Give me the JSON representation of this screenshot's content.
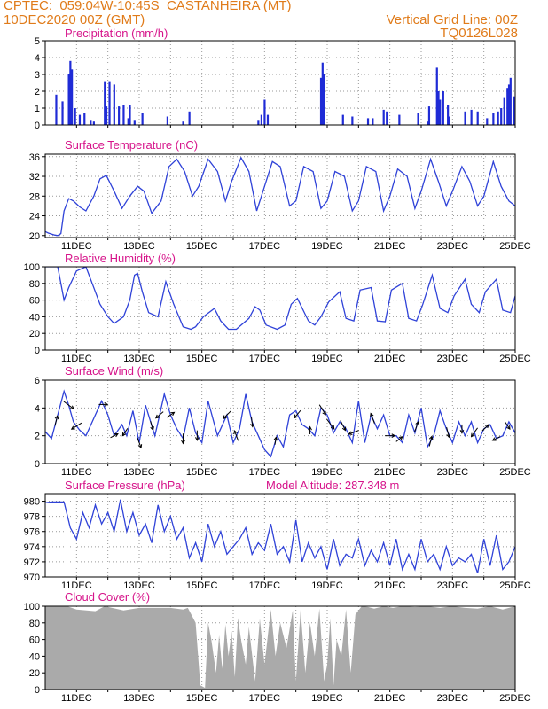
{
  "header": {
    "line1_left": "CPTEC:  059:04W-10:45S  CASTANHEIRA (MT)",
    "line2_left": "10DEC2020 00Z (GMT)",
    "line1_right": "Vertical Grid Line: 00Z",
    "line2_right": "TQ0126L028"
  },
  "x_axis": {
    "range_days": [
      10,
      25
    ],
    "tick_labels": [
      "11DEC",
      "13DEC",
      "15DEC",
      "17DEC",
      "19DEC",
      "21DEC",
      "23DEC",
      "25DEC"
    ],
    "tick_days": [
      11,
      13,
      15,
      17,
      19,
      21,
      23,
      25
    ]
  },
  "colors": {
    "line": "#2f42d8",
    "bar": "#1f2bd6",
    "cloud": "#aaaaaa",
    "title": "#d6138a",
    "header": "#e07b1a",
    "arrow": "#000000"
  },
  "chart_data": [
    {
      "type": "bar",
      "title": "Precipitation (mm/h)",
      "ylim": [
        0,
        5
      ],
      "yticks": [
        0,
        1,
        2,
        3,
        4,
        5
      ],
      "x": [
        10.35,
        10.55,
        10.75,
        10.8,
        10.85,
        10.95,
        11.1,
        11.25,
        11.45,
        11.55,
        11.9,
        11.95,
        12.05,
        12.2,
        12.35,
        12.5,
        12.65,
        12.7,
        12.85,
        13.1,
        13.9,
        14.4,
        14.6,
        16.8,
        16.9,
        17.0,
        17.1,
        18.8,
        18.85,
        18.9,
        19.5,
        19.8,
        20.3,
        20.45,
        20.8,
        20.9,
        21.3,
        21.9,
        22.2,
        22.25,
        22.5,
        22.55,
        22.6,
        22.7,
        22.85,
        22.9,
        23.4,
        23.6,
        23.8,
        24.1,
        24.3,
        24.45,
        24.55,
        24.65,
        24.75,
        24.8,
        24.85,
        24.95
      ],
      "values": [
        1.8,
        1.4,
        3.0,
        3.8,
        3.3,
        1.0,
        0.6,
        0.7,
        0.3,
        0.2,
        2.6,
        1.1,
        2.6,
        2.4,
        1.1,
        1.2,
        0.4,
        1.2,
        0.3,
        0.7,
        0.5,
        0.2,
        0.8,
        0.3,
        0.6,
        1.5,
        0.6,
        2.8,
        3.7,
        3.0,
        0.6,
        0.5,
        0.4,
        0.4,
        0.9,
        0.8,
        0.6,
        0.7,
        0.2,
        1.1,
        3.4,
        2.0,
        1.5,
        2.0,
        1.2,
        0.5,
        0.8,
        0.9,
        0.8,
        0.4,
        0.7,
        0.8,
        1.0,
        1.6,
        2.2,
        2.4,
        2.8,
        1.7
      ]
    },
    {
      "type": "line",
      "title": "Surface Temperature (nC)",
      "ylim": [
        19.6,
        36.5
      ],
      "yticks": [
        20,
        24,
        28,
        32,
        36
      ],
      "x": [
        10.0,
        10.1,
        10.2,
        10.3,
        10.4,
        10.5,
        10.6,
        10.75,
        10.9,
        11.1,
        11.3,
        11.55,
        11.75,
        11.95,
        12.2,
        12.45,
        12.7,
        12.95,
        13.15,
        13.4,
        13.7,
        13.95,
        14.2,
        14.45,
        14.7,
        14.9,
        15.2,
        15.5,
        15.75,
        15.95,
        16.25,
        16.5,
        16.75,
        16.95,
        17.25,
        17.5,
        17.8,
        18.0,
        18.25,
        18.55,
        18.8,
        19.0,
        19.25,
        19.55,
        19.8,
        20.0,
        20.25,
        20.55,
        20.8,
        21.0,
        21.25,
        21.55,
        21.8,
        22.0,
        22.3,
        22.55,
        22.8,
        23.0,
        23.3,
        23.55,
        23.8,
        24.0,
        24.3,
        24.55,
        24.8,
        25.0
      ],
      "values": [
        20.8,
        20.5,
        20.3,
        20.1,
        20.0,
        20.4,
        25.0,
        27.5,
        27.0,
        25.8,
        25.0,
        28.0,
        31.5,
        32.2,
        29.0,
        25.5,
        28.0,
        30.0,
        29.0,
        24.5,
        27.0,
        34.0,
        35.5,
        33.0,
        28.0,
        30.0,
        35.5,
        33.0,
        27.0,
        31.0,
        35.8,
        33.0,
        25.0,
        29.0,
        35.0,
        34.0,
        26.0,
        27.0,
        34.0,
        33.0,
        25.5,
        27.0,
        33.0,
        32.0,
        25.0,
        27.0,
        34.0,
        33.0,
        25.0,
        28.0,
        33.5,
        32.0,
        25.5,
        29.0,
        35.5,
        31.0,
        26.0,
        29.0,
        34.0,
        31.0,
        26.0,
        28.0,
        35.0,
        30.0,
        27.0,
        26.0
      ]
    },
    {
      "type": "line",
      "title": "Relative Humidity (%)",
      "ylim": [
        0,
        100
      ],
      "yticks": [
        0,
        20,
        40,
        60,
        80,
        100
      ],
      "x": [
        10.0,
        10.4,
        10.6,
        10.75,
        11.0,
        11.3,
        11.5,
        11.75,
        12.0,
        12.2,
        12.5,
        12.7,
        12.85,
        12.95,
        13.1,
        13.3,
        13.6,
        13.85,
        14.1,
        14.4,
        14.65,
        14.8,
        15.05,
        15.4,
        15.6,
        15.85,
        16.1,
        16.5,
        16.7,
        16.85,
        17.05,
        17.4,
        17.65,
        17.85,
        18.05,
        18.4,
        18.6,
        18.8,
        19.05,
        19.4,
        19.6,
        19.85,
        20.05,
        20.4,
        20.6,
        20.85,
        21.05,
        21.4,
        21.6,
        21.85,
        22.05,
        22.35,
        22.6,
        22.85,
        23.05,
        23.4,
        23.6,
        23.85,
        24.05,
        24.4,
        24.6,
        24.85,
        25.0
      ],
      "values": [
        100,
        100,
        60,
        75,
        95,
        100,
        80,
        55,
        40,
        32,
        40,
        60,
        90,
        92,
        70,
        45,
        40,
        82,
        55,
        28,
        25,
        28,
        40,
        50,
        35,
        25,
        25,
        38,
        52,
        48,
        30,
        25,
        30,
        55,
        62,
        35,
        30,
        40,
        58,
        70,
        38,
        35,
        72,
        75,
        35,
        34,
        72,
        80,
        38,
        35,
        55,
        90,
        50,
        45,
        65,
        85,
        55,
        45,
        70,
        85,
        48,
        45,
        65
      ],
      "note_end": [
        24.9,
        79,
        25.0,
        73
      ]
    },
    {
      "type": "line",
      "title": "Surface Wind (m/s)",
      "ylim": [
        0,
        6
      ],
      "yticks": [
        0,
        2,
        4,
        6
      ],
      "x": [
        10.0,
        10.2,
        10.4,
        10.6,
        10.75,
        10.9,
        11.1,
        11.3,
        11.5,
        11.8,
        12.0,
        12.2,
        12.45,
        12.6,
        12.8,
        13.0,
        13.2,
        13.5,
        13.8,
        14.0,
        14.2,
        14.4,
        14.6,
        14.8,
        15.0,
        15.2,
        15.5,
        15.8,
        16.0,
        16.2,
        16.4,
        16.6,
        16.8,
        17.0,
        17.2,
        17.4,
        17.6,
        17.8,
        18.0,
        18.2,
        18.4,
        18.6,
        18.8,
        19.0,
        19.2,
        19.4,
        19.6,
        19.8,
        20.0,
        20.2,
        20.4,
        20.6,
        20.8,
        21.0,
        21.2,
        21.4,
        21.6,
        21.8,
        22.0,
        22.2,
        22.4,
        22.6,
        22.8,
        23.0,
        23.2,
        23.4,
        23.6,
        23.8,
        24.0,
        24.2,
        24.4,
        24.6,
        24.8,
        25.0
      ],
      "values": [
        2.3,
        1.8,
        3.5,
        5.2,
        4.2,
        3.0,
        2.4,
        2.0,
        3.0,
        4.5,
        3.5,
        2.0,
        2.8,
        2.0,
        3.8,
        1.5,
        4.2,
        2.0,
        5.0,
        3.5,
        2.5,
        1.8,
        4.0,
        2.2,
        1.5,
        4.5,
        2.0,
        3.5,
        1.5,
        2.5,
        5.0,
        3.0,
        2.0,
        1.0,
        0.5,
        2.0,
        1.2,
        3.5,
        3.8,
        2.8,
        2.5,
        2.0,
        4.0,
        3.5,
        2.2,
        3.0,
        2.5,
        1.5,
        4.5,
        1.5,
        3.5,
        2.5,
        3.5,
        2.0,
        2.0,
        1.5,
        3.5,
        2.2,
        4.0,
        1.2,
        2.0,
        3.8,
        2.5,
        1.5,
        3.0,
        2.0,
        3.0,
        1.5,
        2.5,
        2.8,
        1.8,
        2.0,
        3.0,
        2.2
      ],
      "arrows": [
        {
          "day": 10.35,
          "dx": 0.2,
          "dy": -0.8
        },
        {
          "day": 10.75,
          "dx": 0.8,
          "dy": 0.6
        },
        {
          "day": 11.0,
          "dx": -0.8,
          "dy": 0.5
        },
        {
          "day": 11.85,
          "dx": 0.7,
          "dy": 0.0
        },
        {
          "day": 12.2,
          "dx": 0.6,
          "dy": -0.3
        },
        {
          "day": 12.55,
          "dx": -0.4,
          "dy": 0.6
        },
        {
          "day": 13.0,
          "dx": 0.3,
          "dy": 0.8
        },
        {
          "day": 13.4,
          "dx": 0.2,
          "dy": 0.7
        },
        {
          "day": 13.65,
          "dx": -0.6,
          "dy": 0.5
        },
        {
          "day": 14.0,
          "dx": 0.6,
          "dy": -0.4
        },
        {
          "day": 14.4,
          "dx": 0.0,
          "dy": 0.8
        },
        {
          "day": 14.85,
          "dx": 0.0,
          "dy": 0.8
        },
        {
          "day": 15.8,
          "dx": -0.6,
          "dy": 0.6
        },
        {
          "day": 16.1,
          "dx": -0.3,
          "dy": -0.8
        },
        {
          "day": 16.6,
          "dx": 0.1,
          "dy": 0.8
        },
        {
          "day": 17.35,
          "dx": 0.1,
          "dy": -0.6
        },
        {
          "day": 18.05,
          "dx": -0.5,
          "dy": 0.6
        },
        {
          "day": 18.45,
          "dx": 0.0,
          "dy": -0.6
        },
        {
          "day": 18.85,
          "dx": 0.5,
          "dy": 0.8
        },
        {
          "day": 19.1,
          "dx": 0.6,
          "dy": 0.8
        },
        {
          "day": 19.5,
          "dx": 0.4,
          "dy": 0.8
        },
        {
          "day": 19.85,
          "dx": -0.8,
          "dy": 0.3
        },
        {
          "day": 20.45,
          "dx": -0.3,
          "dy": -0.8
        },
        {
          "day": 21.0,
          "dx": 0.8,
          "dy": 0.0
        },
        {
          "day": 21.3,
          "dx": 0.5,
          "dy": -0.4
        },
        {
          "day": 21.85,
          "dx": 0.3,
          "dy": -0.8
        },
        {
          "day": 22.3,
          "dx": 0.2,
          "dy": -0.8
        },
        {
          "day": 22.85,
          "dx": 0.2,
          "dy": 0.8
        },
        {
          "day": 23.3,
          "dx": 0.0,
          "dy": 0.7
        },
        {
          "day": 23.7,
          "dx": -0.5,
          "dy": 0.7
        },
        {
          "day": 24.05,
          "dx": 0.5,
          "dy": -0.5
        },
        {
          "day": 24.4,
          "dx": -0.6,
          "dy": 0.3
        },
        {
          "day": 24.75,
          "dx": 0.4,
          "dy": 0.6
        }
      ]
    },
    {
      "type": "line",
      "title": "Surface Pressure (hPa)",
      "annotation": "Model Altitude: 287.348 m",
      "ylim": [
        970,
        981
      ],
      "yticks": [
        970,
        972,
        974,
        976,
        978,
        980
      ],
      "x": [
        10.0,
        10.2,
        10.4,
        10.6,
        10.8,
        11.0,
        11.2,
        11.4,
        11.6,
        11.8,
        12.0,
        12.2,
        12.4,
        12.6,
        12.8,
        13.0,
        13.2,
        13.4,
        13.6,
        13.8,
        14.0,
        14.2,
        14.4,
        14.6,
        14.8,
        15.0,
        15.2,
        15.4,
        15.6,
        15.8,
        16.0,
        16.2,
        16.4,
        16.6,
        16.8,
        17.0,
        17.2,
        17.4,
        17.6,
        17.8,
        18.0,
        18.2,
        18.4,
        18.6,
        18.8,
        19.0,
        19.2,
        19.4,
        19.6,
        19.8,
        20.0,
        20.2,
        20.4,
        20.6,
        20.8,
        21.0,
        21.2,
        21.4,
        21.6,
        21.8,
        22.0,
        22.2,
        22.4,
        22.6,
        22.8,
        23.0,
        23.2,
        23.4,
        23.6,
        23.8,
        24.0,
        24.2,
        24.4,
        24.6,
        24.8,
        25.0
      ],
      "values": [
        979.8,
        979.9,
        979.9,
        979.9,
        976.5,
        975.0,
        978.5,
        976.5,
        979.5,
        977.0,
        978.5,
        976.0,
        980.2,
        976.0,
        978.5,
        975.5,
        977.0,
        974.5,
        979.5,
        976.0,
        978.0,
        975.0,
        976.5,
        972.5,
        974.5,
        972.0,
        977.0,
        974.0,
        976.0,
        973.0,
        974.0,
        975.0,
        976.5,
        973.0,
        974.5,
        973.5,
        977.0,
        973.0,
        974.0,
        972.0,
        977.5,
        972.0,
        974.5,
        972.5,
        974.0,
        971.0,
        975.0,
        971.5,
        973.0,
        972.5,
        975.0,
        971.5,
        973.5,
        972.0,
        974.5,
        971.5,
        975.0,
        971.0,
        973.0,
        971.0,
        975.0,
        972.0,
        973.0,
        971.0,
        974.0,
        971.5,
        972.5,
        972.0,
        973.0,
        970.5,
        975.0,
        971.5,
        975.5,
        971.0,
        972.0,
        974.0
      ]
    },
    {
      "type": "area",
      "title": "Cloud Cover (%)",
      "ylim": [
        0,
        100
      ],
      "yticks": [
        0,
        20,
        40,
        60,
        80,
        100
      ],
      "x": [
        10.0,
        10.7,
        11.0,
        11.6,
        11.9,
        12.5,
        13.0,
        13.5,
        14.0,
        14.4,
        14.55,
        14.8,
        14.95,
        15.1,
        15.2,
        15.3,
        15.45,
        15.55,
        15.65,
        15.75,
        15.85,
        15.95,
        16.05,
        16.15,
        16.25,
        16.4,
        16.5,
        16.7,
        16.85,
        17.0,
        17.2,
        17.35,
        17.5,
        17.7,
        17.9,
        18.0,
        18.15,
        18.3,
        18.45,
        18.6,
        18.75,
        18.9,
        19.0,
        19.1,
        19.2,
        19.3,
        19.45,
        19.6,
        19.75,
        19.9,
        20.1,
        20.3,
        20.5,
        20.8,
        21.1,
        21.4,
        21.8,
        22.2,
        22.6,
        23.0,
        23.4,
        23.8,
        24.2,
        24.6,
        25.0
      ],
      "values": [
        100,
        100,
        96,
        94,
        100,
        95,
        98,
        98,
        98,
        96,
        98,
        80,
        5,
        2,
        80,
        60,
        20,
        65,
        25,
        78,
        40,
        70,
        15,
        86,
        60,
        30,
        75,
        10,
        85,
        30,
        96,
        40,
        80,
        50,
        95,
        10,
        96,
        20,
        80,
        40,
        97,
        10,
        30,
        85,
        5,
        60,
        40,
        96,
        20,
        90,
        100,
        99,
        97,
        100,
        98,
        100,
        99,
        100,
        98,
        100,
        98,
        97,
        100,
        96,
        100
      ]
    }
  ]
}
